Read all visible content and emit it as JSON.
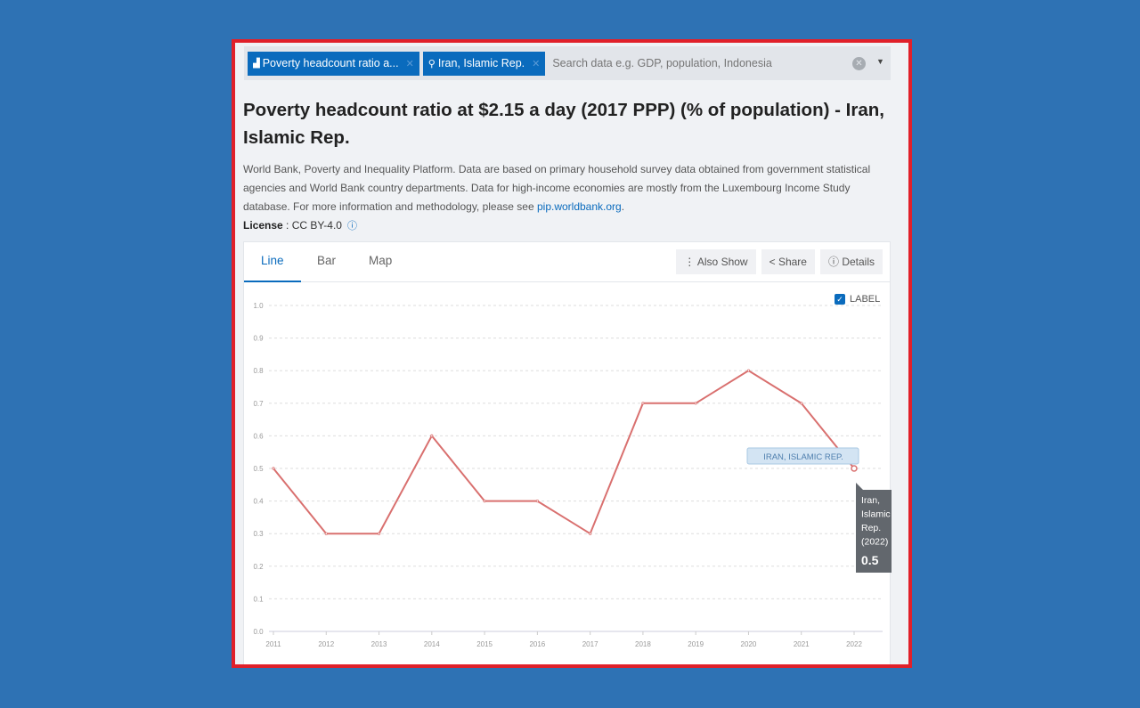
{
  "search": {
    "chips": [
      {
        "label": "Poverty headcount ratio a...",
        "icon": "bar-chart-icon"
      },
      {
        "label": "Iran, Islamic Rep.",
        "icon": "map-pin-icon"
      }
    ],
    "placeholder": "Search data e.g. GDP, population, Indonesia"
  },
  "title": "Poverty headcount ratio at $2.15 a day (2017 PPP) (% of population) - Iran, Islamic Rep.",
  "description": "World Bank, Poverty and Inequality Platform. Data are based on primary household survey data obtained from government statistical agencies and World Bank country departments. Data for high-income economies are mostly from the Luxembourg Income Study database. For more information and methodology, please see ",
  "description_link": "pip.worldbank.org",
  "license": {
    "label": "License",
    "value": ": CC BY-4.0"
  },
  "tabs": [
    "Line",
    "Bar",
    "Map"
  ],
  "active_tab": "Line",
  "buttons": {
    "also_show": "Also Show",
    "share": "Share",
    "details": "Details"
  },
  "label_checkbox": {
    "label": "LABEL",
    "checked": true
  },
  "colors": {
    "accent": "#0a6bbd",
    "series": "#d9706f",
    "background": "#2e72b4",
    "frame": "#e0202a"
  },
  "chart_data": {
    "type": "line",
    "x": [
      "2011",
      "2012",
      "2013",
      "2014",
      "2015",
      "2016",
      "2017",
      "2018",
      "2019",
      "2020",
      "2021",
      "2022"
    ],
    "series": [
      {
        "name": "IRAN, ISLAMIC REP.",
        "values": [
          0.5,
          0.3,
          0.3,
          0.6,
          0.4,
          0.4,
          0.3,
          0.7,
          0.7,
          0.8,
          0.7,
          0.5
        ]
      }
    ],
    "yticks": [
      "0.0",
      "0.1",
      "0.2",
      "0.3",
      "0.4",
      "0.5",
      "0.6",
      "0.7",
      "0.8",
      "0.9",
      "1.0"
    ],
    "ylim": [
      0,
      1.0
    ],
    "grid": true,
    "tooltip": {
      "name": "Iran, Islamic Rep.",
      "year": "(2022)",
      "value": "0.5"
    }
  }
}
